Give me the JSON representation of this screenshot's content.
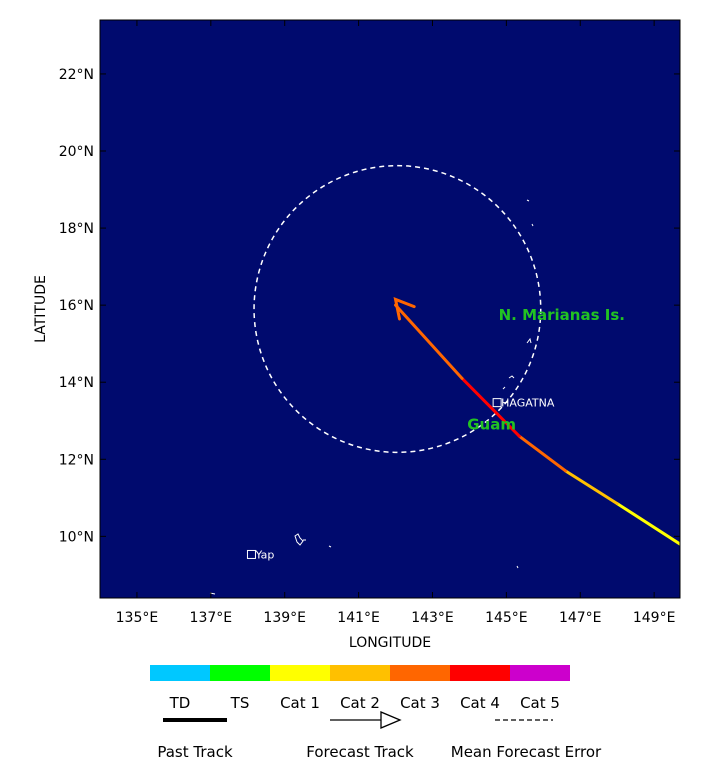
{
  "map": {
    "background_color": "#000a6e",
    "frame_color": "#000000",
    "lon_range": [
      134.0,
      149.7
    ],
    "lat_range": [
      8.4,
      23.4
    ],
    "x_axis_title": "LONGITUDE",
    "y_axis_title": "LATITUDE",
    "lon_ticks": [
      {
        "value": 135,
        "label": "135°E"
      },
      {
        "value": 137,
        "label": "137°E"
      },
      {
        "value": 139,
        "label": "139°E"
      },
      {
        "value": 141,
        "label": "141°E"
      },
      {
        "value": 143,
        "label": "143°E"
      },
      {
        "value": 145,
        "label": "145°E"
      },
      {
        "value": 147,
        "label": "147°E"
      },
      {
        "value": 149,
        "label": "149°E"
      }
    ],
    "lat_ticks": [
      {
        "value": 10,
        "label": "10°N"
      },
      {
        "value": 12,
        "label": "12°N"
      },
      {
        "value": 14,
        "label": "14°N"
      },
      {
        "value": 16,
        "label": "16°N"
      },
      {
        "value": 18,
        "label": "18°N"
      },
      {
        "value": 20,
        "label": "20°N"
      },
      {
        "value": 22,
        "label": "22°N"
      }
    ]
  },
  "track": {
    "segments": [
      {
        "from": [
          149.7,
          9.8
        ],
        "to": [
          148.0,
          10.85
        ],
        "category": "Cat 1",
        "color": "#ffff00"
      },
      {
        "from": [
          148.0,
          10.85
        ],
        "to": [
          146.6,
          11.7
        ],
        "category": "Cat 2",
        "color": "#ffc000"
      },
      {
        "from": [
          146.6,
          11.7
        ],
        "to": [
          145.35,
          12.6
        ],
        "category": "Cat 3",
        "color": "#ff6600"
      },
      {
        "from": [
          145.35,
          12.6
        ],
        "to": [
          143.8,
          14.1
        ],
        "category": "Cat 4",
        "color": "#ff0000"
      },
      {
        "from": [
          143.8,
          14.1
        ],
        "to": [
          142.0,
          16.0
        ],
        "category": "Cat 3",
        "color": "#ff6600"
      }
    ],
    "arrow_tip": [
      142.0,
      16.15
    ],
    "error_circle": {
      "center": [
        142.05,
        15.9
      ],
      "radius_lat": 3.72,
      "color": "#ffffff"
    }
  },
  "places": [
    {
      "name": "HAGATNA",
      "lon": 144.75,
      "lat": 13.47
    },
    {
      "name": "Yap",
      "lon": 138.1,
      "lat": 9.53
    }
  ],
  "regions": [
    {
      "name": "N. Marianas Is.",
      "lon": 146.5,
      "lat": 15.75
    },
    {
      "name": "Guam",
      "lon": 144.6,
      "lat": 12.9
    }
  ],
  "legend": {
    "categories": [
      {
        "label": "TD",
        "color": "#00c8ff"
      },
      {
        "label": "TS",
        "color": "#00ff00"
      },
      {
        "label": "Cat 1",
        "color": "#ffff00"
      },
      {
        "label": "Cat 2",
        "color": "#ffc000"
      },
      {
        "label": "Cat 3",
        "color": "#ff6600"
      },
      {
        "label": "Cat 4",
        "color": "#ff0000"
      },
      {
        "label": "Cat 5",
        "color": "#cc00cc"
      }
    ],
    "past_track_label": "Past Track",
    "forecast_track_label": "Forecast Track",
    "mean_error_label": "Mean Forecast Error"
  }
}
